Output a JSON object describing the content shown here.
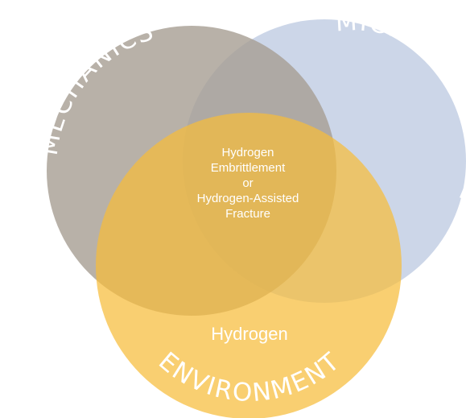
{
  "circles": {
    "mechanics": {
      "label": "MECHANICS"
    },
    "microstructure": {
      "label": "MICROSTRUCTURE"
    },
    "environment": {
      "label": "ENVIRONMENT",
      "sublabel": "Hydrogen"
    }
  },
  "center": {
    "lines": [
      "Hydrogen",
      "Embrittlement",
      "or",
      "Hydrogen-Assisted",
      "Fracture"
    ]
  }
}
